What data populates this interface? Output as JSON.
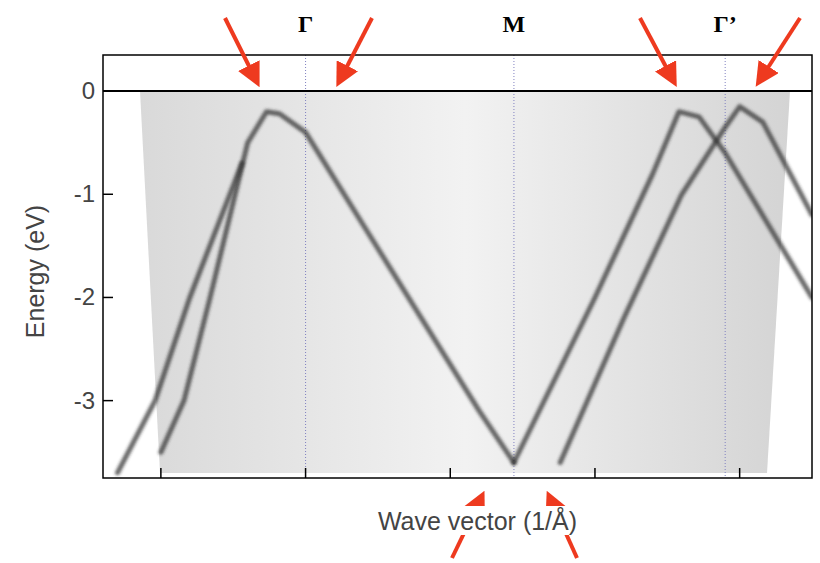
{
  "chart_data": {
    "type": "line",
    "x_label": "Wave vector (1/Å)",
    "y_label": "Energy (eV)",
    "xlim": [
      -0.7,
      1.75
    ],
    "xticks": [
      -0.5,
      0,
      0.5,
      1,
      1.5
    ],
    "ylim": [
      -3.75,
      0.35
    ],
    "yticks": [
      0,
      -1,
      -2,
      -3
    ],
    "tick_labels": "y",
    "reference_line": 0,
    "annotations": [
      {
        "label": "Γ",
        "x": 0
      },
      {
        "label": "M",
        "x": 0.72
      },
      {
        "label": "Γ’",
        "x": 1.45
      }
    ],
    "color": "#2e2e2e",
    "series": [
      {
        "x": [
          -0.5,
          -0.42,
          -0.33,
          -0.2,
          -0.135,
          -0.09,
          0,
          0.2,
          0.4,
          0.6,
          0.72
        ],
        "values": [
          -3.5,
          -3.0,
          -2.0,
          -0.5,
          -0.2,
          -0.22,
          -0.4,
          -1.3,
          -2.2,
          -3.1,
          -3.6
        ]
      },
      {
        "x": [
          -0.65,
          -0.52,
          -0.4,
          -0.22
        ],
        "values": [
          -3.7,
          -3.0,
          -2.0,
          -0.7
        ]
      },
      {
        "x": [
          0.72,
          1.0,
          1.2,
          1.29,
          1.36,
          1.45,
          1.6,
          1.75
        ],
        "values": [
          -3.6,
          -2.0,
          -0.8,
          -0.2,
          -0.25,
          -0.6,
          -1.3,
          -2.0
        ]
      },
      {
        "x": [
          0.88,
          1.1,
          1.3,
          1.45,
          1.5,
          1.58,
          1.75
        ],
        "values": [
          -3.6,
          -2.2,
          -1.0,
          -0.35,
          -0.15,
          -0.3,
          -1.2
        ]
      }
    ]
  }
}
